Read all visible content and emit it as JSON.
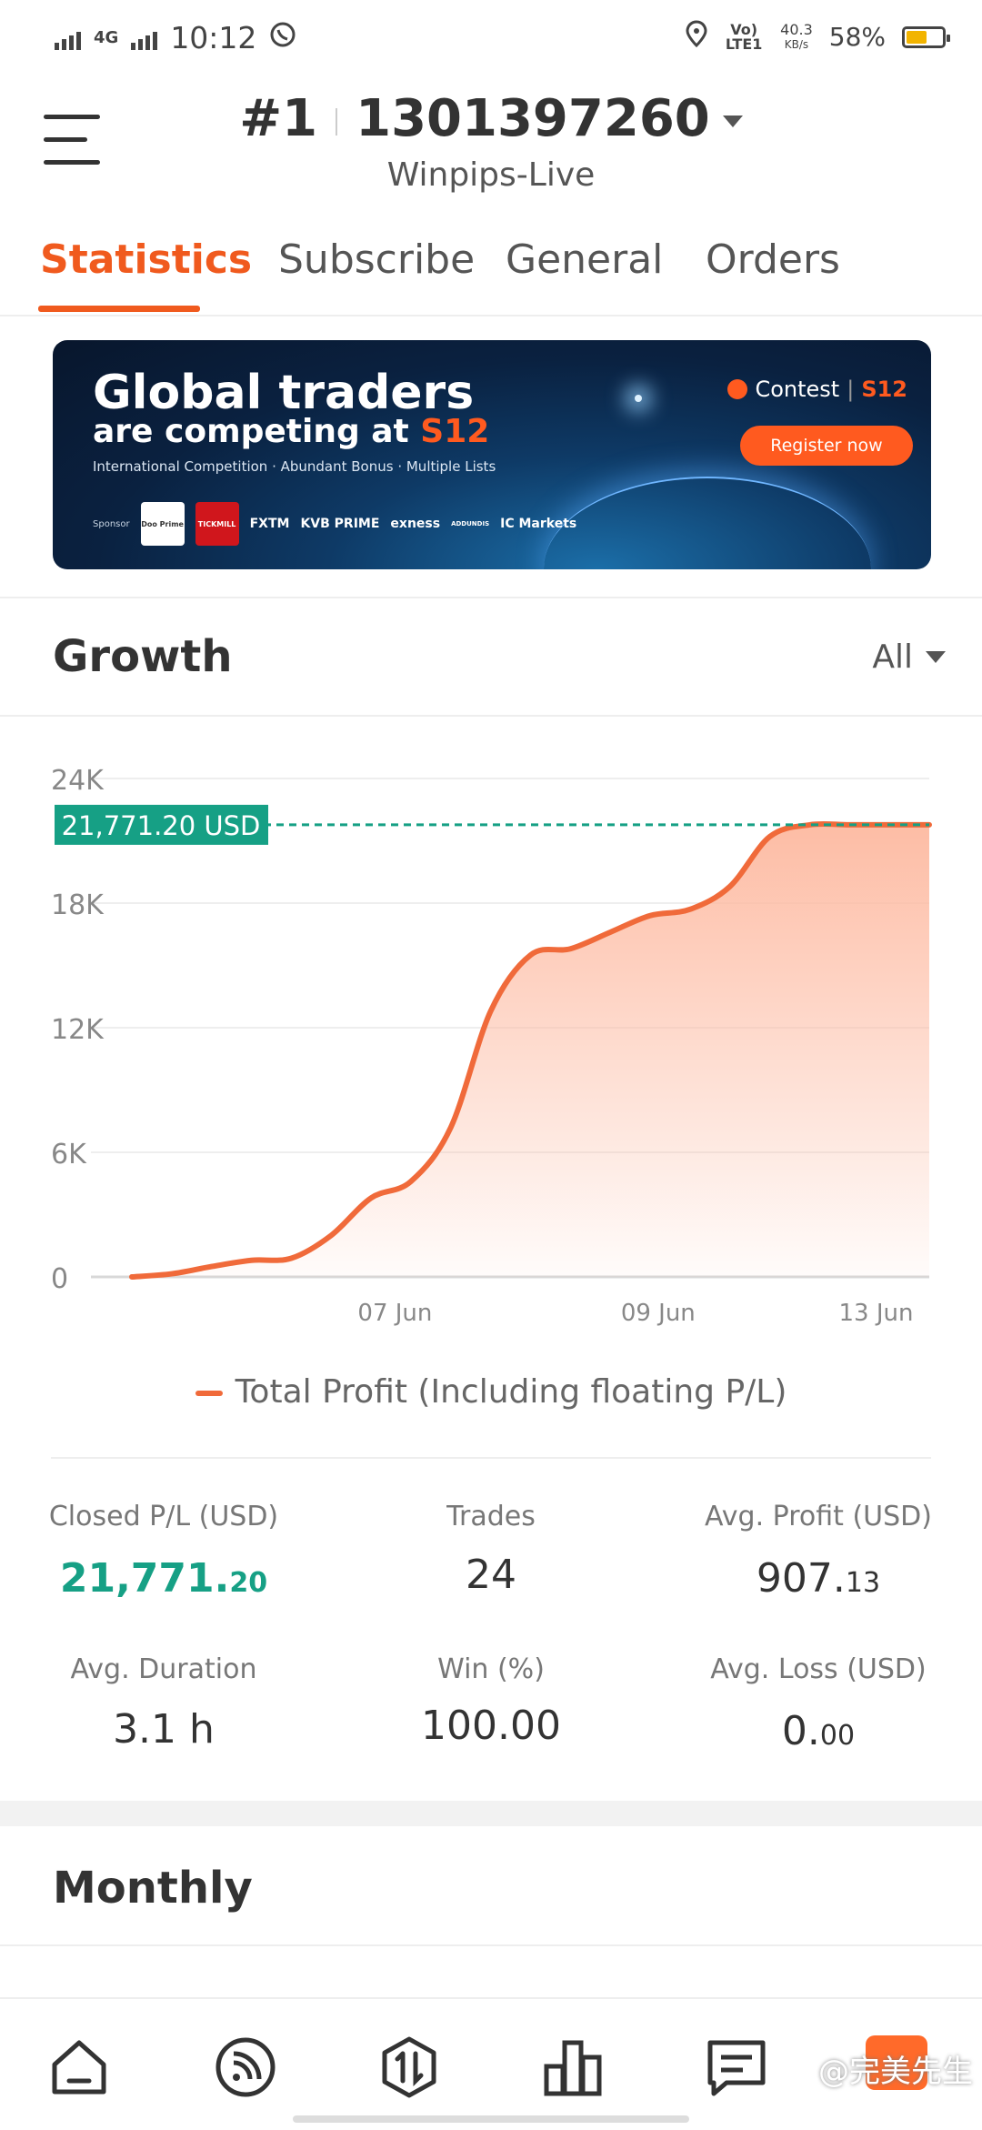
{
  "status_bar": {
    "network": "4G",
    "time": "10:12",
    "volte": "Vo) LTE1",
    "speed_value": "40.3",
    "speed_unit": "KB/s",
    "battery": "58%",
    "battery_level": 0.58,
    "icons": [
      "signal-icon",
      "whatsapp-icon",
      "location-icon",
      "battery-icon"
    ]
  },
  "header": {
    "rank": "#1",
    "account": "1301397260",
    "server": "Winpips-Live"
  },
  "tabs": [
    {
      "label": "Statistics",
      "active": true
    },
    {
      "label": "Subscribe",
      "active": false
    },
    {
      "label": "General",
      "active": false
    },
    {
      "label": "Orders",
      "active": false
    }
  ],
  "banner": {
    "title_line1": "Global traders",
    "title_line2": "are competing at ",
    "title_brand": "S12",
    "subtitle": "International Competition · Abundant Bonus · Multiple Lists",
    "sponsor_label": "Sponsor",
    "sponsors": [
      "Doo Prime",
      "TICKMILL",
      "FXTM",
      "KVB PRIME",
      "exness",
      "ADDUNDIS",
      "IC Markets"
    ],
    "contest_label": "Contest",
    "contest_brand": "S12",
    "cta": "Register now"
  },
  "growth": {
    "title": "Growth",
    "filter": "All"
  },
  "chart_data": {
    "type": "area",
    "series": [
      {
        "name": "Total Profit (Including floating P/L)",
        "x": [
          0,
          0.05,
          0.1,
          0.15,
          0.2,
          0.25,
          0.3,
          0.35,
          0.4,
          0.45,
          0.5,
          0.55,
          0.6,
          0.65,
          0.7,
          0.75,
          0.8,
          0.85,
          0.9,
          0.95,
          1.0
        ],
        "values": [
          0,
          150,
          500,
          800,
          900,
          2000,
          3800,
          4600,
          7200,
          12800,
          15500,
          15800,
          16600,
          17400,
          17700,
          18800,
          21200,
          21770,
          21771,
          21771,
          21771
        ]
      }
    ],
    "x_tick_labels": [
      "07 Jun",
      "09 Jun",
      "13 Jun"
    ],
    "x_tick_positions": [
      0.33,
      0.66,
      0.98
    ],
    "y_ticks": [
      0,
      6000,
      12000,
      18000,
      24000
    ],
    "y_tick_labels": [
      "0",
      "6K",
      "12K",
      "18K",
      "24K"
    ],
    "ylim": [
      0,
      24000
    ],
    "reference_value": 21771.2,
    "reference_label": "21,771.20 USD",
    "grid": true,
    "legend": "bottom",
    "colors": {
      "line": "#f06a3a",
      "fill_top": "#fdb9a0",
      "reference": "#16a085"
    }
  },
  "stats": {
    "closed_pl_label": "Closed P/L (USD)",
    "closed_pl_int": "21,771.",
    "closed_pl_dec": "20",
    "trades_label": "Trades",
    "trades_value": "24",
    "avg_profit_label": "Avg. Profit (USD)",
    "avg_profit_int": "907.",
    "avg_profit_dec": "13",
    "avg_duration_label": "Avg. Duration",
    "avg_duration_value": "3.1 h",
    "win_label": "Win (%)",
    "win_value": "100.00",
    "avg_loss_label": "Avg. Loss (USD)",
    "avg_loss_int": "0.",
    "avg_loss_dec": "00"
  },
  "monthly": {
    "title": "Monthly"
  },
  "bottom_nav": {
    "items": [
      "home-icon",
      "signal-feed-icon",
      "trade-icon",
      "rank-chart-icon",
      "message-icon"
    ],
    "watermark": "@完美先生"
  },
  "colors": {
    "accent": "#f05a1e",
    "positive": "#16a085"
  }
}
